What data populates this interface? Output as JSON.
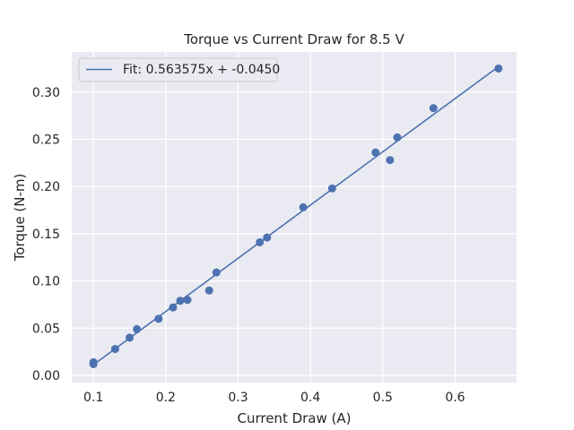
{
  "chart_data": {
    "type": "scatter",
    "title": "Torque vs Current Draw for 8.5 V",
    "xlabel": "Current Draw (A)",
    "ylabel": "Torque (N-m)",
    "xlim": [
      0.07,
      0.685
    ],
    "ylim": [
      -0.0075,
      0.3425
    ],
    "xticks": [
      0.1,
      0.2,
      0.3,
      0.4,
      0.5,
      0.6
    ],
    "xtick_labels": [
      "0.1",
      "0.2",
      "0.3",
      "0.4",
      "0.5",
      "0.6"
    ],
    "yticks": [
      0.0,
      0.05,
      0.1,
      0.15,
      0.2,
      0.25,
      0.3
    ],
    "ytick_labels": [
      "0.00",
      "0.05",
      "0.10",
      "0.15",
      "0.20",
      "0.25",
      "0.30"
    ],
    "grid": true,
    "legend_position": "top-left",
    "series": [
      {
        "name": "",
        "kind": "scatter",
        "color": "#4c72b0",
        "x": [
          0.1,
          0.1,
          0.13,
          0.15,
          0.16,
          0.19,
          0.21,
          0.22,
          0.23,
          0.26,
          0.27,
          0.33,
          0.34,
          0.39,
          0.43,
          0.49,
          0.51,
          0.52,
          0.57,
          0.66
        ],
        "y": [
          0.012,
          0.014,
          0.028,
          0.04,
          0.049,
          0.06,
          0.072,
          0.079,
          0.08,
          0.09,
          0.109,
          0.141,
          0.146,
          0.178,
          0.198,
          0.236,
          0.228,
          0.252,
          0.283,
          0.325
        ]
      },
      {
        "name": "Fit: 0.563575x + -0.0450",
        "kind": "line",
        "color": "#4c72b0",
        "slope": 0.563575,
        "intercept": -0.045,
        "x_range": [
          0.1,
          0.66
        ]
      }
    ]
  }
}
